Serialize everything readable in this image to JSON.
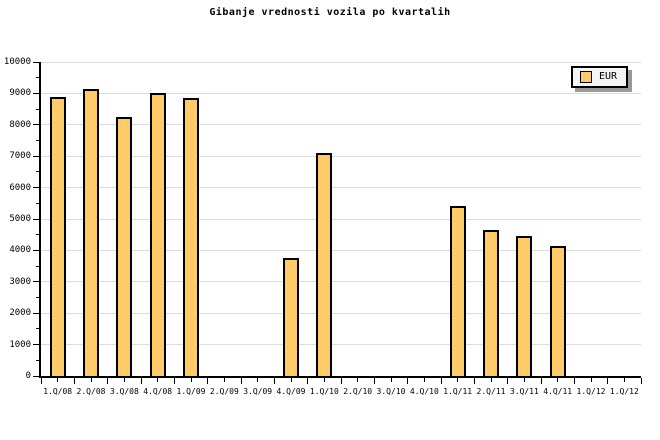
{
  "title": "Gibanje vrednosti vozila po kvartalih",
  "legend": {
    "label": "EUR"
  },
  "colors": {
    "background": "#FFFFFF",
    "bar_fill": "#FFCB69",
    "bar_border": "#000000",
    "grid": "#DCDCDC",
    "axis": "#000000",
    "legend_bg": "#F4F4F4",
    "legend_shadow": "#999999"
  },
  "chart_data": {
    "type": "bar",
    "title": "Gibanje vrednosti vozila po kvartalih",
    "categories": [
      "1.Q/08",
      "2.Q/08",
      "3.Q/08",
      "4.Q/08",
      "1.Q/09",
      "2.Q/09",
      "3.Q/09",
      "4.Q/09",
      "1.Q/10",
      "2.Q/10",
      "3.Q/10",
      "4.Q/10",
      "1.Q/11",
      "2.Q/11",
      "3.Q/11",
      "4.Q/11",
      "1.Q/12",
      "1.Q/12"
    ],
    "series": [
      {
        "name": "EUR",
        "values": [
          8900,
          9150,
          8250,
          9000,
          8850,
          null,
          null,
          3750,
          7100,
          null,
          null,
          null,
          5400,
          4650,
          4450,
          4150,
          null,
          null
        ]
      }
    ],
    "xlabel": "",
    "ylabel": "",
    "ylim": [
      0,
      10000
    ],
    "y_major_step": 1000,
    "y_minor_step": 500,
    "y_tick_labels": [
      "0",
      "1000",
      "2000",
      "3000",
      "4000",
      "5000",
      "6000",
      "7000",
      "8000",
      "9000",
      "10000"
    ],
    "grid": "horizontal-major",
    "legend_position": "top-right"
  }
}
